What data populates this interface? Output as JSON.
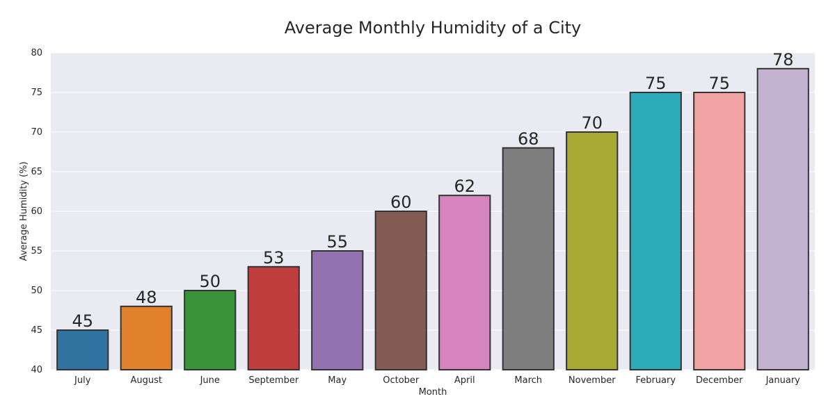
{
  "chart_data": {
    "type": "bar",
    "title": "Average Monthly Humidity of a City",
    "xlabel": "Month",
    "ylabel": "Average Humidity (%)",
    "ylim": [
      40,
      80
    ],
    "yticks": [
      40,
      45,
      50,
      55,
      60,
      65,
      70,
      75,
      80
    ],
    "categories": [
      "July",
      "August",
      "June",
      "September",
      "May",
      "October",
      "April",
      "March",
      "November",
      "February",
      "December",
      "January"
    ],
    "values": [
      45,
      48,
      50,
      53,
      55,
      60,
      62,
      68,
      70,
      75,
      75,
      78
    ],
    "data_labels": [
      "45",
      "48",
      "50",
      "53",
      "55",
      "60",
      "62",
      "68",
      "70",
      "75",
      "75",
      "78"
    ],
    "colors": [
      "#3274a1",
      "#e1812c",
      "#3a923a",
      "#c03d3e",
      "#9372b2",
      "#845b53",
      "#d684bd",
      "#7f7f7f",
      "#a9aa35",
      "#2eabb8",
      "#f1a2a3",
      "#c3b3d1"
    ],
    "background": "#eaeaf2",
    "grid": true,
    "legend": "none"
  }
}
